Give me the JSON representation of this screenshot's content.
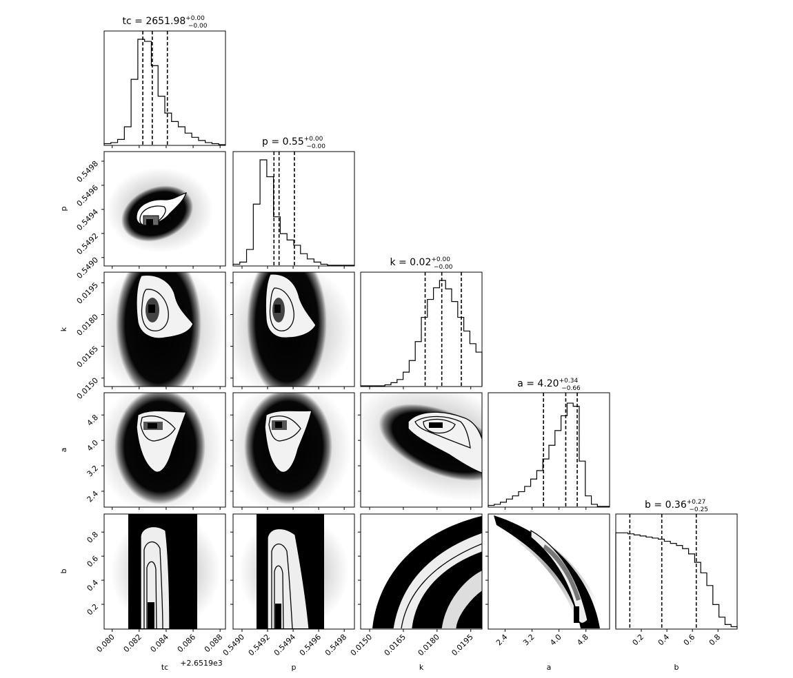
{
  "chart_data": {
    "type": "corner",
    "parameters": [
      {
        "name": "tc",
        "label": "tc",
        "title": "tc = 2651.98",
        "median": "2651.98",
        "upper": "+0.00",
        "lower": "−0.00",
        "offset_label": "+2.6519e3",
        "ticks": [
          "0.080",
          "0.082",
          "0.084",
          "0.086",
          "0.088"
        ],
        "tick_values": [
          0.08,
          0.082,
          0.084,
          0.086,
          0.088
        ],
        "range": [
          0.0794,
          0.0884
        ],
        "quantiles": [
          0.08227,
          0.08297,
          0.08409
        ]
      },
      {
        "name": "p",
        "label": "p",
        "title": "p = 0.55",
        "median": "0.55",
        "upper": "+0.00",
        "lower": "−0.00",
        "ticks": [
          "0.5490",
          "0.5492",
          "0.5494",
          "0.5496",
          "0.5498"
        ],
        "tick_values": [
          0.549,
          0.5492,
          0.5494,
          0.5496,
          0.5498
        ],
        "range": [
          0.54893,
          0.54988
        ],
        "quantiles": [
          0.54925,
          0.54929,
          0.54941
        ]
      },
      {
        "name": "k",
        "label": "k",
        "title": "k = 0.02",
        "median": "0.02",
        "upper": "+0.00",
        "lower": "−0.00",
        "ticks": [
          "0.0150",
          "0.0165",
          "0.0180",
          "0.0195"
        ],
        "tick_values": [
          0.015,
          0.0165,
          0.018,
          0.0195
        ],
        "range": [
          0.0146,
          0.02
        ],
        "quantiles": [
          0.01747,
          0.01821,
          0.01908
        ]
      },
      {
        "name": "a",
        "label": "a",
        "title": "a = 4.20",
        "median": "4.20",
        "upper": "+0.34",
        "lower": "−0.66",
        "ticks": [
          "2.4",
          "3.2",
          "4.0",
          "4.8"
        ],
        "tick_values": [
          2.4,
          3.2,
          4.0,
          4.8
        ],
        "range": [
          1.9,
          5.5
        ],
        "quantiles": [
          3.54,
          4.2,
          4.54
        ]
      },
      {
        "name": "b",
        "label": "b",
        "title": "b = 0.36",
        "median": "0.36",
        "upper": "+0.27",
        "lower": "−0.25",
        "ticks": [
          "0.2",
          "0.4",
          "0.6",
          "0.8"
        ],
        "tick_values": [
          0.2,
          0.4,
          0.6,
          0.8
        ],
        "range": [
          0.0,
          0.95
        ],
        "quantiles": [
          0.11,
          0.36,
          0.63
        ]
      }
    ],
    "histograms": {
      "tc": [
        0.01,
        0.02,
        0.05,
        0.17,
        0.62,
        1.0,
        0.98,
        0.75,
        0.46,
        0.3,
        0.22,
        0.17,
        0.11,
        0.07,
        0.04,
        0.02,
        0.01,
        0.0
      ],
      "p": [
        0.01,
        0.03,
        0.15,
        0.58,
        1.0,
        0.84,
        0.46,
        0.3,
        0.24,
        0.19,
        0.11,
        0.06,
        0.03,
        0.01,
        0.0,
        0.0,
        0.0,
        0.0
      ],
      "k": [
        0.0,
        0.0,
        0.0,
        0.0,
        0.01,
        0.03,
        0.06,
        0.13,
        0.24,
        0.42,
        0.65,
        0.82,
        0.93,
        1.0,
        0.92,
        0.8,
        0.65,
        0.52,
        0.4,
        0.32
      ],
      "a": [
        0.01,
        0.02,
        0.04,
        0.07,
        0.1,
        0.14,
        0.19,
        0.26,
        0.34,
        0.45,
        0.58,
        0.72,
        0.86,
        0.98,
        0.95,
        0.43,
        0.1,
        0.02,
        0.0,
        0.0
      ],
      "b": [
        0.9,
        0.9,
        0.89,
        0.88,
        0.87,
        0.86,
        0.85,
        0.84,
        0.82,
        0.8,
        0.78,
        0.75,
        0.7,
        0.62,
        0.52,
        0.4,
        0.22,
        0.1,
        0.03,
        0.01
      ]
    },
    "scatter_pairs": [
      {
        "x": "tc",
        "y": "p"
      },
      {
        "x": "tc",
        "y": "k"
      },
      {
        "x": "p",
        "y": "k"
      },
      {
        "x": "tc",
        "y": "a"
      },
      {
        "x": "p",
        "y": "a"
      },
      {
        "x": "k",
        "y": "a"
      },
      {
        "x": "tc",
        "y": "b"
      },
      {
        "x": "p",
        "y": "b"
      },
      {
        "x": "k",
        "y": "b"
      },
      {
        "x": "a",
        "y": "b"
      }
    ]
  }
}
